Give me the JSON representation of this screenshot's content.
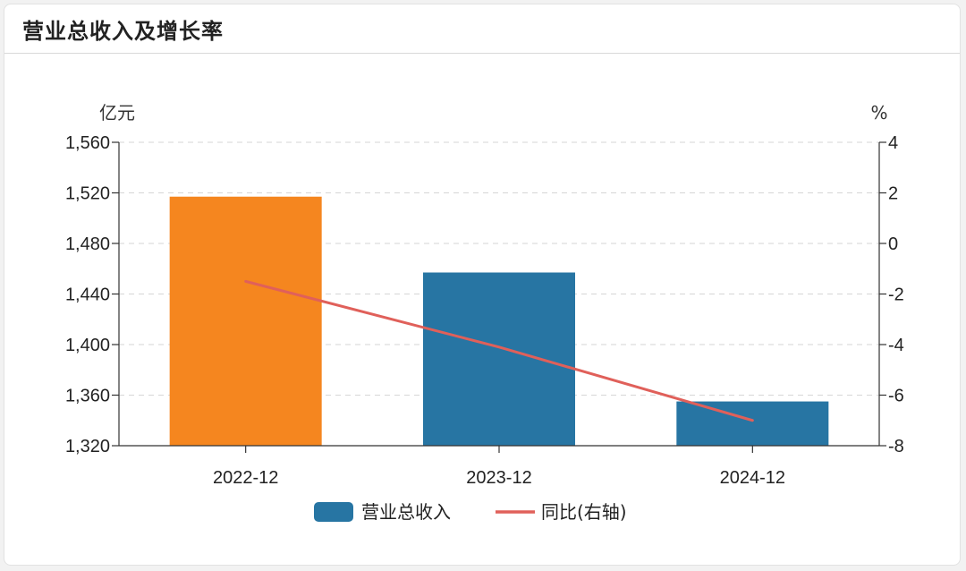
{
  "panel": {
    "title": "营业总收入及增长率"
  },
  "chart_data": {
    "type": "bar",
    "categories": [
      "2022-12",
      "2023-12",
      "2024-12"
    ],
    "series": [
      {
        "name": "营业总收入",
        "type": "bar",
        "axis": "left",
        "values": [
          1517,
          1457,
          1355
        ],
        "color": "#2775a3",
        "highlight_color": "#f5861f",
        "highlight_index": 0
      },
      {
        "name": "同比(右轴)",
        "type": "line",
        "axis": "right",
        "values": [
          -1.5,
          -4.1,
          -7.0
        ],
        "color": "#e0605a"
      }
    ],
    "y_left": {
      "unit": "亿元",
      "ylim": [
        1320,
        1560
      ],
      "ticks": [
        1320,
        1360,
        1400,
        1440,
        1480,
        1520,
        1560
      ],
      "tick_labels": [
        "1,320",
        "1,360",
        "1,400",
        "1,440",
        "1,480",
        "1,520",
        "1,560"
      ]
    },
    "y_right": {
      "unit": "%",
      "ylim": [
        -8,
        4
      ],
      "ticks": [
        -8,
        -6,
        -4,
        -2,
        0,
        2,
        4
      ],
      "tick_labels": [
        "-8",
        "-6",
        "-4",
        "-2",
        "0",
        "2",
        "4"
      ]
    },
    "grid": true,
    "legend_position": "bottom-center"
  }
}
